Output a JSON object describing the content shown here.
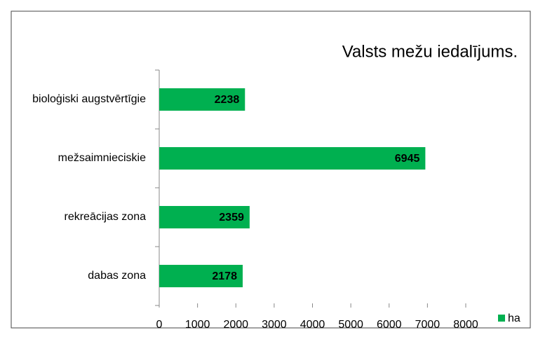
{
  "chart_data": {
    "type": "hbar",
    "title": "Valsts mežu iedalījums.",
    "categories": [
      "bioloģiski augstvērtīgie",
      "mežsaimnieciskie",
      "rekreācijas zona",
      "dabas zona"
    ],
    "series": [
      {
        "name": "ha",
        "color": "#00b050",
        "values": [
          2238,
          6945,
          2359,
          2178
        ]
      }
    ],
    "xlim": [
      0,
      8000
    ],
    "xticks": [
      0,
      1000,
      2000,
      3000,
      4000,
      5000,
      6000,
      7000,
      8000
    ],
    "grid": false,
    "legend": "bottom-right"
  }
}
